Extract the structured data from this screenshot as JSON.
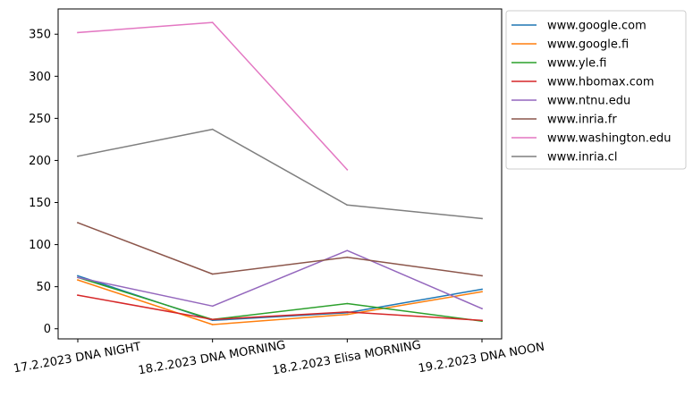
{
  "chart_data": {
    "type": "line",
    "title": "",
    "xlabel": "",
    "ylabel": "",
    "categories": [
      "17.2.2023 DNA NIGHT",
      "18.2.2023 DNA MORNING",
      "18.2.2023 Elisa MORNING",
      "19.2.2023 DNA NOON"
    ],
    "ylim": [
      -12,
      380
    ],
    "yticks": [
      0,
      50,
      100,
      150,
      200,
      250,
      300,
      350
    ],
    "grid": false,
    "legend_position": "outside-right",
    "series": [
      {
        "name": "www.google.com",
        "color": "#1f77b4",
        "values": [
          63,
          10,
          19,
          47
        ]
      },
      {
        "name": "www.google.fi",
        "color": "#ff7f0e",
        "values": [
          58,
          5,
          17,
          44
        ]
      },
      {
        "name": "www.yle.fi",
        "color": "#2ca02c",
        "values": [
          61,
          11,
          30,
          9
        ]
      },
      {
        "name": "www.hbomax.com",
        "color": "#d62728",
        "values": [
          40,
          11,
          20,
          10
        ]
      },
      {
        "name": "www.ntnu.edu",
        "color": "#9467bd",
        "values": [
          61,
          27,
          93,
          24
        ]
      },
      {
        "name": "www.inria.fr",
        "color": "#8c564b",
        "values": [
          126,
          65,
          85,
          63
        ]
      },
      {
        "name": "www.washington.edu",
        "color": "#e377c2",
        "values": [
          352,
          364,
          189,
          null
        ]
      },
      {
        "name": "www.inria.cl",
        "color": "#7f7f7f",
        "values": [
          205,
          237,
          147,
          131
        ]
      }
    ]
  }
}
